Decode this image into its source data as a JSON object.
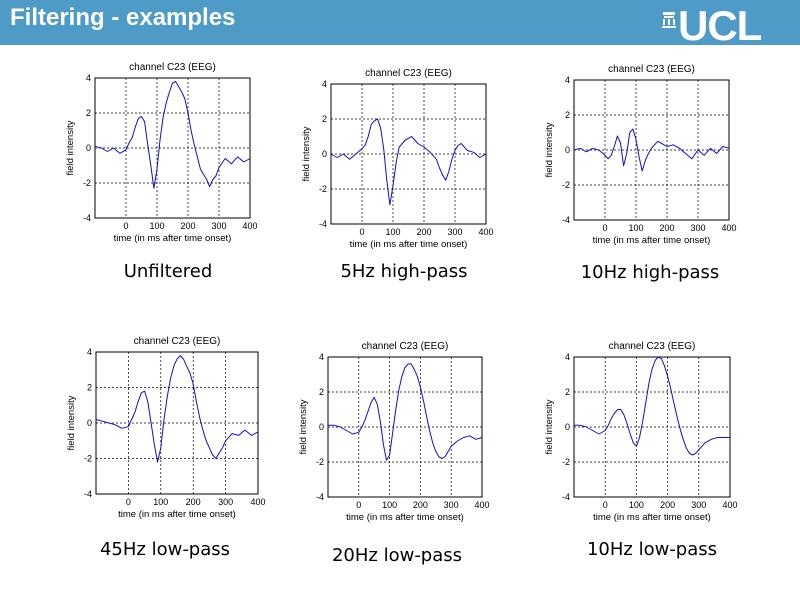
{
  "slide": {
    "title": "Filtering - examples",
    "logo": "UCL"
  },
  "colors": {
    "header": "#4d9bc6",
    "trace": "#1010c8",
    "grid": "#000000"
  },
  "chart_data": [
    {
      "type": "line",
      "title": "channel C23 (EEG)",
      "xlabel": "time (in ms after time onset)",
      "ylabel": "field intensity",
      "xlim": [
        -100,
        400
      ],
      "ylim": [
        -4,
        4
      ],
      "xticks": [
        0,
        100,
        200,
        300,
        400
      ],
      "yticks": [
        -4,
        -2,
        0,
        2,
        4
      ],
      "grid": true,
      "caption": "Unfiltered",
      "series": [
        {
          "x": [
            -100,
            -80,
            -60,
            -40,
            -20,
            0,
            10,
            20,
            30,
            40,
            50,
            60,
            70,
            80,
            90,
            100,
            110,
            120,
            130,
            140,
            150,
            160,
            170,
            180,
            190,
            200,
            210,
            220,
            230,
            240,
            250,
            260,
            270,
            280,
            290,
            300,
            320,
            340,
            360,
            380,
            400
          ],
          "values": [
            0.1,
            0.0,
            -0.2,
            0.0,
            -0.3,
            -0.1,
            0.3,
            0.6,
            1.2,
            1.7,
            1.8,
            1.5,
            0.2,
            -1.0,
            -2.3,
            -1.2,
            0.5,
            1.8,
            2.6,
            3.2,
            3.7,
            3.8,
            3.5,
            3.2,
            2.8,
            2.0,
            1.0,
            0.2,
            -0.5,
            -1.2,
            -1.5,
            -1.8,
            -2.2,
            -1.8,
            -1.6,
            -1.1,
            -0.6,
            -0.9,
            -0.5,
            -0.8,
            -0.6
          ]
        }
      ]
    },
    {
      "type": "line",
      "title": "channel C23 (EEG)",
      "xlabel": "time (in ms after time onset)",
      "ylabel": "field intensity",
      "xlim": [
        -100,
        400
      ],
      "ylim": [
        -4,
        4
      ],
      "xticks": [
        0,
        100,
        200,
        300,
        400
      ],
      "yticks": [
        -4,
        -2,
        0,
        2,
        4
      ],
      "grid": true,
      "caption": "5Hz high-pass",
      "series": [
        {
          "x": [
            -100,
            -80,
            -60,
            -40,
            -20,
            0,
            10,
            20,
            30,
            40,
            50,
            60,
            70,
            80,
            90,
            100,
            110,
            120,
            130,
            140,
            150,
            160,
            170,
            180,
            200,
            220,
            240,
            250,
            260,
            270,
            280,
            290,
            300,
            310,
            320,
            340,
            360,
            380,
            400
          ],
          "values": [
            0.0,
            -0.2,
            0.0,
            -0.3,
            0.0,
            0.3,
            0.5,
            1.0,
            1.7,
            1.9,
            2.0,
            1.5,
            0.3,
            -1.5,
            -2.9,
            -1.8,
            -0.5,
            0.4,
            0.6,
            0.8,
            0.9,
            1.0,
            0.8,
            0.6,
            0.4,
            0.1,
            -0.3,
            -0.8,
            -1.2,
            -1.5,
            -1.0,
            -0.3,
            0.2,
            0.5,
            0.6,
            0.2,
            0.1,
            -0.2,
            0.0
          ]
        }
      ]
    },
    {
      "type": "line",
      "title": "channel C23 (EEG)",
      "xlabel": "time (in ms after time onset)",
      "ylabel": "field intensity",
      "xlim": [
        -100,
        400
      ],
      "ylim": [
        -4,
        4
      ],
      "xticks": [
        0,
        100,
        200,
        300,
        400
      ],
      "yticks": [
        -4,
        -2,
        0,
        2,
        4
      ],
      "grid": true,
      "caption": "10Hz high-pass",
      "series": [
        {
          "x": [
            -100,
            -80,
            -60,
            -40,
            -20,
            0,
            10,
            20,
            30,
            40,
            50,
            60,
            70,
            80,
            90,
            100,
            110,
            120,
            130,
            140,
            150,
            160,
            170,
            180,
            200,
            220,
            240,
            260,
            280,
            300,
            320,
            340,
            360,
            380,
            400
          ],
          "values": [
            0.0,
            0.1,
            -0.1,
            0.1,
            0.0,
            -0.3,
            -0.5,
            -0.3,
            0.2,
            0.8,
            0.4,
            -0.9,
            -0.2,
            1.0,
            1.2,
            0.6,
            -0.4,
            -1.2,
            -0.6,
            -0.2,
            0.1,
            0.3,
            0.5,
            0.4,
            0.2,
            0.3,
            0.1,
            -0.2,
            -0.5,
            0.0,
            -0.3,
            0.1,
            -0.2,
            0.2,
            0.1
          ]
        }
      ]
    },
    {
      "type": "line",
      "title": "channel C23 (EEG)",
      "xlabel": "time (in ms after time onset)",
      "ylabel": "field intensity",
      "xlim": [
        -100,
        400
      ],
      "ylim": [
        -4,
        4
      ],
      "xticks": [
        0,
        100,
        200,
        300,
        400
      ],
      "yticks": [
        -4,
        -2,
        0,
        2,
        4
      ],
      "grid": true,
      "caption": "45Hz low-pass",
      "series": [
        {
          "x": [
            -100,
            -80,
            -60,
            -40,
            -20,
            0,
            10,
            20,
            30,
            40,
            50,
            60,
            70,
            80,
            90,
            100,
            110,
            120,
            130,
            140,
            150,
            160,
            170,
            180,
            190,
            200,
            210,
            220,
            230,
            240,
            250,
            260,
            270,
            280,
            290,
            300,
            320,
            340,
            360,
            380,
            400
          ],
          "values": [
            0.2,
            0.1,
            0.0,
            -0.1,
            -0.3,
            -0.2,
            0.2,
            0.6,
            1.2,
            1.7,
            1.8,
            1.2,
            0.0,
            -1.2,
            -2.2,
            -1.4,
            0.2,
            1.5,
            2.5,
            3.2,
            3.6,
            3.8,
            3.6,
            3.2,
            2.8,
            2.2,
            1.2,
            0.3,
            -0.4,
            -1.0,
            -1.4,
            -1.8,
            -2.0,
            -1.7,
            -1.4,
            -1.0,
            -0.6,
            -0.7,
            -0.4,
            -0.7,
            -0.5
          ]
        }
      ]
    },
    {
      "type": "line",
      "title": "channel C23 (EEG)",
      "xlabel": "time (in ms after time onset)",
      "ylabel": "field intensity",
      "xlim": [
        -100,
        400
      ],
      "ylim": [
        -4,
        4
      ],
      "xticks": [
        0,
        100,
        200,
        300,
        400
      ],
      "yticks": [
        -4,
        -2,
        0,
        2,
        4
      ],
      "grid": true,
      "caption": "20Hz low-pass",
      "series": [
        {
          "x": [
            -100,
            -80,
            -60,
            -40,
            -20,
            0,
            10,
            20,
            30,
            40,
            50,
            60,
            70,
            80,
            90,
            100,
            110,
            120,
            130,
            140,
            150,
            160,
            170,
            180,
            190,
            200,
            210,
            220,
            230,
            240,
            250,
            260,
            270,
            280,
            290,
            300,
            320,
            340,
            360,
            380,
            400
          ],
          "values": [
            0.1,
            0.1,
            0.0,
            -0.2,
            -0.4,
            -0.3,
            0.0,
            0.4,
            0.9,
            1.4,
            1.7,
            1.3,
            0.3,
            -1.0,
            -1.9,
            -1.6,
            -0.3,
            1.0,
            2.1,
            2.9,
            3.4,
            3.6,
            3.6,
            3.3,
            2.9,
            2.3,
            1.5,
            0.6,
            -0.2,
            -0.9,
            -1.4,
            -1.7,
            -1.8,
            -1.7,
            -1.4,
            -1.1,
            -0.8,
            -0.6,
            -0.5,
            -0.7,
            -0.6
          ]
        }
      ]
    },
    {
      "type": "line",
      "title": "channel C23 (EEG)",
      "xlabel": "time (in ms after time onset)",
      "ylabel": "field intensity",
      "xlim": [
        -100,
        400
      ],
      "ylim": [
        -4,
        4
      ],
      "xticks": [
        0,
        100,
        200,
        300,
        400
      ],
      "yticks": [
        -4,
        -2,
        0,
        2,
        4
      ],
      "grid": true,
      "caption": "10Hz low-pass",
      "series": [
        {
          "x": [
            -100,
            -80,
            -60,
            -40,
            -20,
            0,
            10,
            20,
            30,
            40,
            50,
            60,
            70,
            80,
            90,
            100,
            110,
            120,
            130,
            140,
            150,
            160,
            170,
            180,
            190,
            200,
            210,
            220,
            230,
            240,
            250,
            260,
            270,
            280,
            290,
            300,
            320,
            340,
            360,
            380,
            400
          ],
          "values": [
            0.1,
            0.1,
            0.0,
            -0.2,
            -0.4,
            -0.2,
            0.1,
            0.5,
            0.8,
            1.0,
            1.0,
            0.7,
            0.2,
            -0.4,
            -0.9,
            -1.1,
            -0.6,
            0.3,
            1.4,
            2.5,
            3.3,
            3.8,
            4.0,
            3.9,
            3.5,
            2.9,
            2.2,
            1.4,
            0.6,
            -0.1,
            -0.7,
            -1.2,
            -1.5,
            -1.6,
            -1.5,
            -1.3,
            -0.9,
            -0.7,
            -0.6,
            -0.6,
            -0.6
          ]
        }
      ]
    }
  ]
}
